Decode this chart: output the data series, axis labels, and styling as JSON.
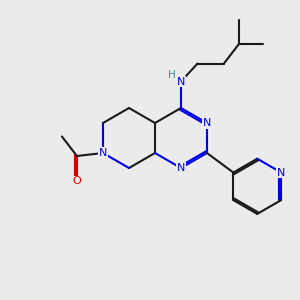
{
  "bg_color": "#ebebeb",
  "bond_color": "#1a1a1a",
  "N_color": "#0000ee",
  "O_color": "#dd0000",
  "H_color": "#3d8b8b",
  "lw": 1.5,
  "fs": 8.0,
  "figsize": [
    3.0,
    3.0
  ],
  "dpi": 100,
  "xlim": [
    0,
    10
  ],
  "ylim": [
    0,
    10
  ]
}
